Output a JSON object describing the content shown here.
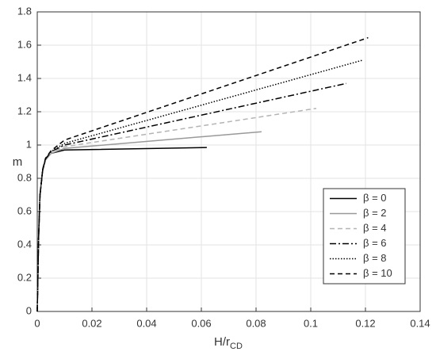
{
  "chart_data": {
    "type": "line",
    "xlabel": {
      "text": "H/r",
      "subscript": "CD"
    },
    "ylabel": "m",
    "xlim": [
      0,
      0.14
    ],
    "ylim": [
      0,
      1.8
    ],
    "xticks": [
      0,
      0.02,
      0.04,
      0.06,
      0.08,
      0.1,
      0.12,
      0.14
    ],
    "yticks": [
      0,
      0.2,
      0.4,
      0.6,
      0.8,
      1,
      1.2,
      1.4,
      1.6,
      1.8
    ],
    "grid": true,
    "legend": "right",
    "series": [
      {
        "name": "β = 0",
        "color": "#000000",
        "dash": "solid",
        "x": [
          0,
          0.0005,
          0.001,
          0.002,
          0.003,
          0.005,
          0.01,
          0.062
        ],
        "values": [
          0,
          0.45,
          0.7,
          0.85,
          0.91,
          0.95,
          0.97,
          0.985
        ]
      },
      {
        "name": "β = 2",
        "color": "#999999",
        "dash": "solid",
        "x": [
          0,
          0.0005,
          0.001,
          0.002,
          0.003,
          0.005,
          0.01,
          0.082
        ],
        "values": [
          0,
          0.45,
          0.7,
          0.85,
          0.91,
          0.95,
          0.98,
          1.08
        ]
      },
      {
        "name": "β = 4",
        "color": "#b4b4b4",
        "dash": "dashed",
        "x": [
          0,
          0.0005,
          0.001,
          0.002,
          0.003,
          0.005,
          0.01,
          0.102
        ],
        "values": [
          0,
          0.45,
          0.7,
          0.85,
          0.91,
          0.955,
          0.99,
          1.22
        ]
      },
      {
        "name": "β = 6",
        "color": "#000000",
        "dash": "dashdot",
        "x": [
          0,
          0.0005,
          0.001,
          0.002,
          0.003,
          0.005,
          0.01,
          0.113
        ],
        "values": [
          0,
          0.45,
          0.7,
          0.85,
          0.915,
          0.96,
          1.0,
          1.37
        ]
      },
      {
        "name": "β = 8",
        "color": "#000000",
        "dash": "dotted",
        "x": [
          0,
          0.0005,
          0.001,
          0.002,
          0.003,
          0.005,
          0.01,
          0.119
        ],
        "values": [
          0,
          0.45,
          0.7,
          0.855,
          0.915,
          0.96,
          1.01,
          1.51
        ]
      },
      {
        "name": "β = 10",
        "color": "#000000",
        "dash": "dashed",
        "x": [
          0,
          0.0005,
          0.001,
          0.002,
          0.003,
          0.005,
          0.01,
          0.121
        ],
        "values": [
          0,
          0.45,
          0.7,
          0.855,
          0.92,
          0.965,
          1.03,
          1.645
        ]
      }
    ]
  }
}
